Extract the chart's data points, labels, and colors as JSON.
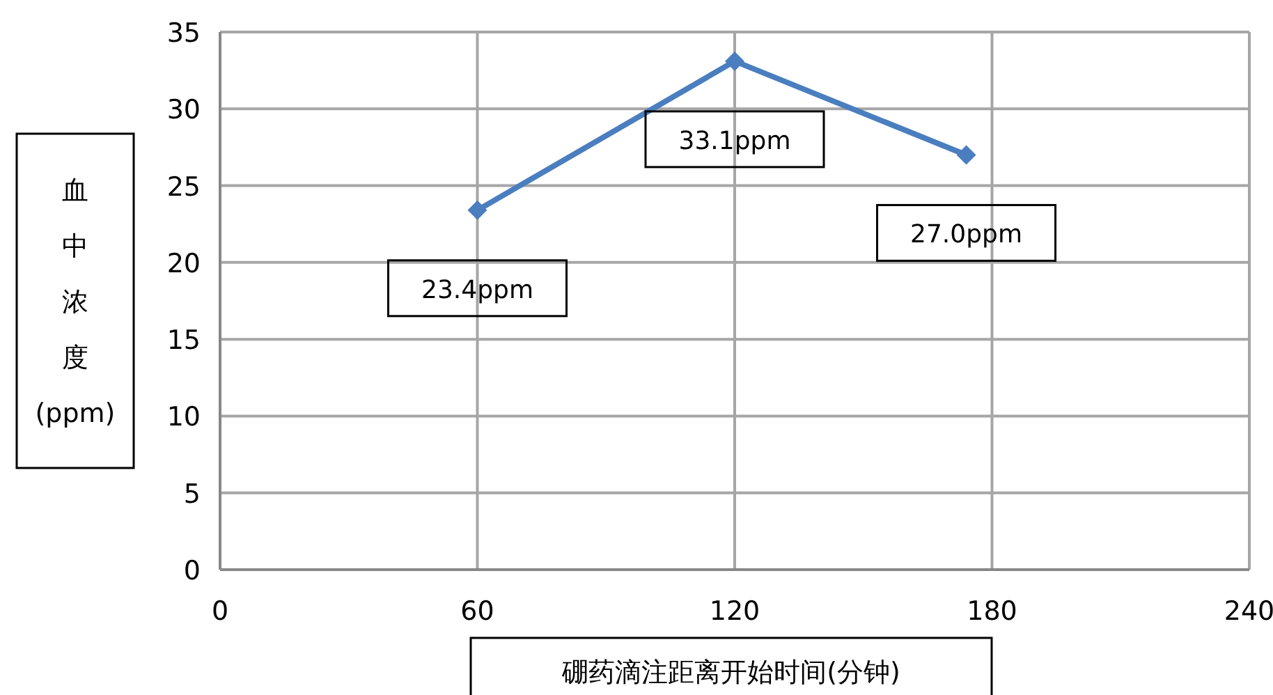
{
  "chart_data": {
    "type": "line",
    "xlabel": "硼药滴注距离开始时间(分钟)",
    "ylabel": "血中浓度(ppm)",
    "x": [
      60,
      120,
      174
    ],
    "series": [
      {
        "color": "#4a7ebf",
        "values": [
          23.4,
          33.1,
          27.0
        ],
        "value_labels": [
          "23.4ppm",
          "33.1ppm",
          "27.0ppm"
        ]
      }
    ],
    "xlim": [
      0,
      240
    ],
    "xticks": [
      0,
      60,
      120,
      180,
      240
    ],
    "ylim": [
      0,
      35
    ],
    "yticks": [
      0,
      5,
      10,
      15,
      20,
      25,
      30,
      35
    ],
    "grid": true,
    "marker": "diamond",
    "line_style": "solid"
  }
}
